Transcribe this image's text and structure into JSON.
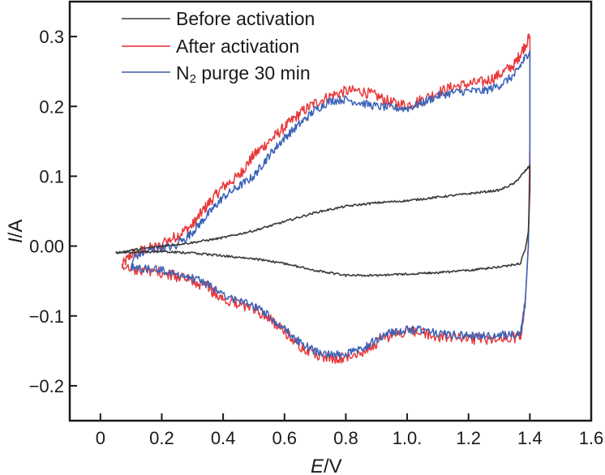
{
  "chart_data": {
    "type": "line",
    "title": "",
    "xlabel": "E/V",
    "xlabel_italic_part": "E",
    "xlabel_unit": "/V",
    "ylabel": "I/A",
    "ylabel_italic_part": "I",
    "ylabel_unit": "/A",
    "xlim": [
      -0.1,
      1.6
    ],
    "ylim": [
      -0.25,
      0.35
    ],
    "grid": false,
    "legend_position": "top-left",
    "x_ticks": [
      0,
      0.2,
      0.4,
      0.6,
      0.8,
      1.0,
      1.2,
      1.4,
      1.6
    ],
    "x_tick_labels": [
      "0",
      "0.2",
      "0.4",
      "0.6",
      "0.8",
      "1.0.",
      "1.2",
      "1.4",
      "1.6"
    ],
    "y_ticks": [
      0.3,
      0.2,
      0.1,
      0.0,
      -0.1,
      -0.2
    ],
    "y_tick_labels": [
      "0.3",
      "0.2",
      "0.1",
      "0.00",
      "−0.1",
      "−0.2"
    ],
    "series": [
      {
        "name": "Before activation",
        "color": "#3a3a3a",
        "noise": 0.0015,
        "x": [
          0.05,
          0.1,
          0.2,
          0.3,
          0.4,
          0.5,
          0.6,
          0.7,
          0.8,
          0.9,
          1.0,
          1.1,
          1.2,
          1.3,
          1.35,
          1.4,
          1.4,
          1.395,
          1.385,
          1.375,
          1.37,
          1.3,
          1.2,
          1.1,
          1.0,
          0.9,
          0.8,
          0.7,
          0.6,
          0.5,
          0.4,
          0.3,
          0.2,
          0.1,
          0.05
        ],
        "y": [
          -0.01,
          -0.006,
          0.0,
          0.005,
          0.012,
          0.022,
          0.035,
          0.048,
          0.057,
          0.062,
          0.065,
          0.07,
          0.075,
          0.08,
          0.09,
          0.115,
          0.08,
          0.02,
          -0.005,
          -0.015,
          -0.025,
          -0.03,
          -0.035,
          -0.038,
          -0.04,
          -0.042,
          -0.042,
          -0.035,
          -0.025,
          -0.018,
          -0.014,
          -0.01,
          -0.008,
          -0.009,
          -0.01
        ]
      },
      {
        "name": "After activation",
        "color": "#e8393a",
        "noise": 0.008,
        "x": [
          0.07,
          0.1,
          0.15,
          0.2,
          0.21,
          0.215,
          0.25,
          0.3,
          0.35,
          0.4,
          0.45,
          0.5,
          0.55,
          0.6,
          0.65,
          0.7,
          0.75,
          0.8,
          0.85,
          0.9,
          0.95,
          1.0,
          1.05,
          1.1,
          1.15,
          1.2,
          1.25,
          1.3,
          1.35,
          1.4,
          1.4,
          1.395,
          1.385,
          1.37,
          1.3,
          1.2,
          1.1,
          1.05,
          1.0,
          0.95,
          0.9,
          0.85,
          0.8,
          0.75,
          0.7,
          0.65,
          0.6,
          0.55,
          0.5,
          0.45,
          0.4,
          0.35,
          0.3,
          0.2,
          0.1,
          0.07
        ],
        "y": [
          -0.028,
          -0.012,
          -0.004,
          0.0,
          0.012,
          0.006,
          0.015,
          0.03,
          0.06,
          0.085,
          0.1,
          0.13,
          0.15,
          0.17,
          0.19,
          0.205,
          0.215,
          0.222,
          0.222,
          0.215,
          0.205,
          0.202,
          0.21,
          0.22,
          0.228,
          0.232,
          0.235,
          0.245,
          0.26,
          0.3,
          0.15,
          0.0,
          -0.08,
          -0.13,
          -0.133,
          -0.133,
          -0.13,
          -0.124,
          -0.122,
          -0.127,
          -0.138,
          -0.152,
          -0.16,
          -0.16,
          -0.155,
          -0.142,
          -0.122,
          -0.104,
          -0.09,
          -0.082,
          -0.075,
          -0.06,
          -0.05,
          -0.038,
          -0.032,
          -0.032
        ]
      },
      {
        "name": "N₂ purge 30 min",
        "name_main": "N",
        "name_sub": "2",
        "name_rest": " purge 30 min",
        "color": "#3a62b8",
        "noise": 0.006,
        "x": [
          0.1,
          0.11,
          0.15,
          0.2,
          0.25,
          0.26,
          0.265,
          0.3,
          0.35,
          0.4,
          0.45,
          0.5,
          0.55,
          0.6,
          0.65,
          0.7,
          0.75,
          0.8,
          0.85,
          0.9,
          0.95,
          1.0,
          1.05,
          1.1,
          1.15,
          1.2,
          1.25,
          1.3,
          1.35,
          1.4,
          1.4,
          1.4,
          1.395,
          1.385,
          1.37,
          1.3,
          1.2,
          1.1,
          1.05,
          1.0,
          0.95,
          0.9,
          0.85,
          0.8,
          0.75,
          0.7,
          0.65,
          0.6,
          0.55,
          0.5,
          0.45,
          0.4,
          0.35,
          0.3,
          0.2,
          0.1
        ],
        "y": [
          -0.03,
          -0.015,
          -0.008,
          -0.003,
          0.0,
          0.012,
          0.006,
          0.02,
          0.045,
          0.07,
          0.085,
          0.1,
          0.13,
          0.155,
          0.175,
          0.195,
          0.208,
          0.21,
          0.205,
          0.2,
          0.198,
          0.197,
          0.205,
          0.215,
          0.22,
          0.222,
          0.222,
          0.23,
          0.245,
          0.28,
          0.2,
          0.1,
          0.0,
          -0.08,
          -0.125,
          -0.128,
          -0.128,
          -0.126,
          -0.12,
          -0.12,
          -0.123,
          -0.133,
          -0.148,
          -0.155,
          -0.156,
          -0.15,
          -0.138,
          -0.118,
          -0.1,
          -0.086,
          -0.078,
          -0.07,
          -0.055,
          -0.045,
          -0.035,
          -0.03
        ]
      }
    ]
  }
}
